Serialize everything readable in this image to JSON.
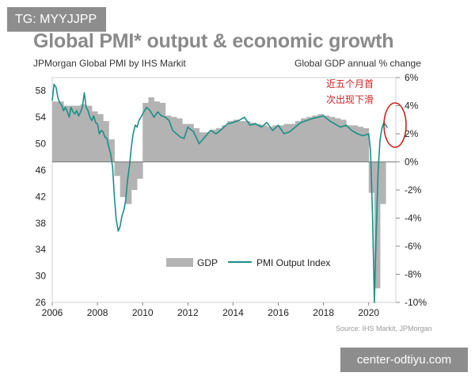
{
  "header": {
    "tag": "TG: MYYJJPP",
    "title": "Global PMI* output & economic growth",
    "subtitle_left": "JPMorgan Global PMI by IHS Markit",
    "subtitle_right": "Global GDP annual % change"
  },
  "annotation": {
    "line1": "近五个月首",
    "line2": "次出现下滑",
    "color": "#cc2222"
  },
  "footer": {
    "source": "Source: IHS Markit, JPMorgan",
    "watermark": "center-odtiyu.com"
  },
  "chart_data": {
    "type": "line",
    "legend": {
      "gdp": "GDP",
      "pmi": "PMI Output Index",
      "placement": "bottom-center"
    },
    "x_ticks": [
      "2006",
      "2008",
      "2010",
      "2012",
      "2014",
      "2016",
      "2018",
      "2020"
    ],
    "xlim": [
      2006,
      2021.2
    ],
    "left_axis": {
      "ticks": [
        26,
        30,
        34,
        38,
        42,
        46,
        50,
        54,
        58
      ],
      "range": [
        26,
        60
      ]
    },
    "right_axis": {
      "ticks": [
        "6%",
        "4%",
        "2%",
        "0%",
        "-2%",
        "-4%",
        "-6%",
        "-8%",
        "-10%"
      ],
      "range": [
        -10,
        6
      ]
    },
    "colors": {
      "gdp": "#b3b3b3",
      "pmi": "#1a8f87"
    },
    "gdp_series": {
      "name": "GDP",
      "x": [
        2006.0,
        2006.25,
        2006.5,
        2006.75,
        2007.0,
        2007.25,
        2007.5,
        2007.75,
        2008.0,
        2008.25,
        2008.5,
        2008.75,
        2009.0,
        2009.25,
        2009.5,
        2009.75,
        2010.0,
        2010.25,
        2010.5,
        2010.75,
        2011.0,
        2011.25,
        2011.5,
        2011.75,
        2012.0,
        2012.25,
        2012.5,
        2012.75,
        2013.0,
        2013.25,
        2013.5,
        2013.75,
        2014.0,
        2014.25,
        2014.5,
        2014.75,
        2015.0,
        2015.25,
        2015.5,
        2015.75,
        2016.0,
        2016.25,
        2016.5,
        2016.75,
        2017.0,
        2017.25,
        2017.5,
        2017.75,
        2018.0,
        2018.25,
        2018.5,
        2018.75,
        2019.0,
        2019.25,
        2019.5,
        2019.75,
        2020.0,
        2020.25,
        2020.5
      ],
      "values": [
        4.3,
        4.3,
        4.0,
        4.0,
        4.0,
        4.1,
        4.0,
        3.6,
        3.4,
        2.9,
        1.6,
        -1.0,
        -2.5,
        -3.0,
        -2.0,
        -1.2,
        4.2,
        4.6,
        4.3,
        4.2,
        3.3,
        3.2,
        3.1,
        2.7,
        2.7,
        2.4,
        2.1,
        2.1,
        2.3,
        2.4,
        2.6,
        2.9,
        3.0,
        2.9,
        2.9,
        2.8,
        2.7,
        2.6,
        2.5,
        2.6,
        2.6,
        2.7,
        2.7,
        2.9,
        3.1,
        3.2,
        3.3,
        3.4,
        3.3,
        3.2,
        3.1,
        3.0,
        2.6,
        2.6,
        2.5,
        2.4,
        -2.2,
        -9.0,
        -3.0
      ]
    },
    "pmi_series": {
      "name": "PMI Output Index",
      "x": [
        2006.0,
        2006.08,
        2006.17,
        2006.25,
        2006.33,
        2006.42,
        2006.5,
        2006.58,
        2006.67,
        2006.75,
        2006.83,
        2006.92,
        2007.0,
        2007.08,
        2007.17,
        2007.25,
        2007.33,
        2007.42,
        2007.5,
        2007.58,
        2007.67,
        2007.75,
        2007.83,
        2007.92,
        2008.0,
        2008.08,
        2008.17,
        2008.25,
        2008.33,
        2008.42,
        2008.5,
        2008.58,
        2008.67,
        2008.75,
        2008.83,
        2008.92,
        2009.0,
        2009.08,
        2009.17,
        2009.25,
        2009.33,
        2009.42,
        2009.5,
        2009.58,
        2009.67,
        2009.75,
        2009.83,
        2009.92,
        2010.0,
        2010.17,
        2010.33,
        2010.5,
        2010.67,
        2010.83,
        2011.0,
        2011.17,
        2011.33,
        2011.5,
        2011.67,
        2011.83,
        2012.0,
        2012.25,
        2012.5,
        2012.75,
        2013.0,
        2013.25,
        2013.5,
        2013.75,
        2014.0,
        2014.25,
        2014.5,
        2014.75,
        2015.0,
        2015.25,
        2015.5,
        2015.75,
        2016.0,
        2016.25,
        2016.5,
        2016.75,
        2017.0,
        2017.25,
        2017.5,
        2017.75,
        2018.0,
        2018.25,
        2018.5,
        2018.75,
        2019.0,
        2019.25,
        2019.5,
        2019.75,
        2020.0,
        2020.08,
        2020.17,
        2020.25,
        2020.33,
        2020.42,
        2020.5,
        2020.58,
        2020.67,
        2020.75,
        2020.83
      ],
      "values": [
        56.5,
        59.0,
        58.5,
        57.0,
        56.2,
        55.8,
        55.0,
        55.5,
        54.8,
        54.0,
        55.5,
        54.8,
        54.5,
        55.0,
        54.2,
        54.8,
        55.5,
        57.7,
        55.5,
        55.0,
        54.0,
        53.5,
        54.2,
        53.2,
        53.0,
        51.5,
        52.0,
        51.8,
        51.0,
        50.8,
        49.5,
        48.5,
        46.5,
        42.0,
        38.5,
        36.8,
        37.5,
        39.0,
        40.0,
        41.5,
        44.5,
        46.8,
        49.5,
        51.5,
        52.8,
        52.5,
        53.5,
        54.0,
        54.5,
        55.5,
        55.0,
        54.0,
        54.8,
        54.2,
        54.0,
        53.5,
        52.0,
        51.5,
        51.0,
        50.8,
        52.5,
        51.8,
        50.0,
        51.0,
        52.0,
        51.5,
        52.2,
        53.0,
        53.2,
        53.5,
        54.0,
        52.8,
        53.0,
        52.5,
        53.2,
        52.0,
        52.8,
        51.5,
        51.8,
        52.5,
        53.2,
        53.5,
        53.8,
        54.0,
        54.2,
        53.5,
        53.0,
        52.5,
        52.8,
        52.0,
        51.5,
        51.2,
        51.5,
        49.0,
        39.0,
        26.0,
        36.5,
        46.0,
        50.5,
        52.3,
        53.2,
        52.8,
        52.4
      ]
    }
  }
}
